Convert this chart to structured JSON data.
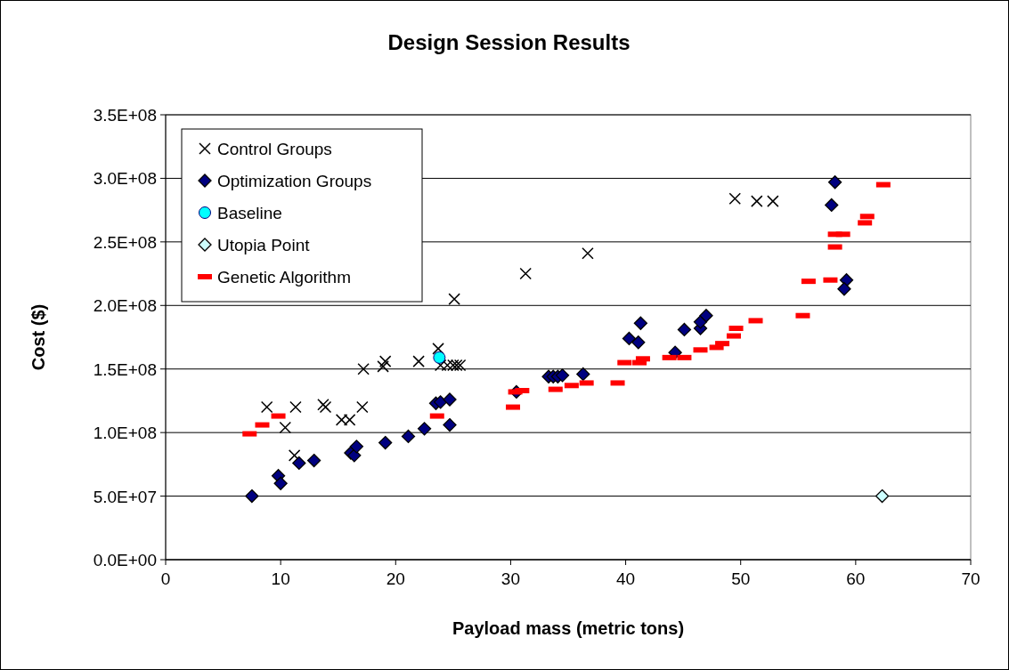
{
  "chart_data": {
    "type": "scatter",
    "title": "Design Session Results",
    "xlabel": "Payload mass (metric tons)",
    "ylabel": "Cost ($)",
    "xlim": [
      0,
      70
    ],
    "xticks": [
      0,
      10,
      20,
      30,
      40,
      50,
      60,
      70
    ],
    "ylim": [
      0,
      350000000
    ],
    "yticks": [
      {
        "value": 0,
        "label": "0.0E+00"
      },
      {
        "value": 50000000,
        "label": "5.0E+07"
      },
      {
        "value": 100000000,
        "label": "1.0E+08"
      },
      {
        "value": 150000000,
        "label": "1.5E+08"
      },
      {
        "value": 200000000,
        "label": "2.0E+08"
      },
      {
        "value": 250000000,
        "label": "2.5E+08"
      },
      {
        "value": 300000000,
        "label": "3.0E+08"
      },
      {
        "value": 350000000,
        "label": "3.5E+08"
      }
    ],
    "grid": "y",
    "legend": "top left",
    "series": [
      {
        "name": "Control Groups",
        "color": "#000000",
        "marker": "cross",
        "x": [
          8.8,
          11.3,
          10.4,
          11.2,
          13.7,
          13.9,
          15.3,
          16.0,
          17.1,
          17.2,
          18.9,
          19.1,
          22.0,
          23.7,
          23.9,
          24.5,
          25.0,
          25.3,
          25.6,
          25.1,
          31.3,
          36.7,
          49.5,
          51.4,
          52.8
        ],
        "values": [
          120000000,
          120000000,
          104000000,
          82000000,
          122000000,
          120000000,
          110000000,
          110000000,
          120000000,
          150000000,
          152000000,
          156000000,
          156000000,
          166000000,
          153000000,
          153000000,
          153000000,
          153000000,
          153000000,
          205000000,
          225000000,
          241000000,
          284000000,
          282000000,
          282000000
        ]
      },
      {
        "name": "Optimization Groups",
        "color": "#000080",
        "marker": "diamond",
        "x": [
          7.5,
          9.8,
          10.0,
          11.6,
          12.9,
          16.1,
          16.4,
          16.6,
          19.1,
          21.1,
          22.5,
          23.5,
          23.9,
          24.7,
          24.7,
          30.5,
          33.3,
          33.7,
          34.1,
          34.5,
          36.3,
          40.3,
          41.3,
          41.1,
          44.3,
          45.1,
          46.5,
          46.5,
          47.0,
          58.2,
          57.9,
          59.2,
          59.0
        ],
        "values": [
          50000000,
          66000000,
          60000000,
          76000000,
          78000000,
          84000000,
          82000000,
          89000000,
          92000000,
          97000000,
          103000000,
          123000000,
          124000000,
          126000000,
          106000000,
          132000000,
          144000000,
          144000000,
          144000000,
          145000000,
          146000000,
          174000000,
          186000000,
          171000000,
          163000000,
          181000000,
          182000000,
          187000000,
          192000000,
          297000000,
          279000000,
          220000000,
          213000000
        ]
      },
      {
        "name": "Baseline",
        "color": "#00ffff",
        "marker": "circle",
        "x": [
          23.8
        ],
        "values": [
          159000000
        ]
      },
      {
        "name": "Utopia Point",
        "color": "#ccffff",
        "marker": "diamond",
        "x": [
          62.3
        ],
        "values": [
          50000000
        ]
      },
      {
        "name": "Genetic Algorithm",
        "color": "#ff0000",
        "marker": "square",
        "x": [
          7.3,
          8.4,
          9.8,
          23.6,
          30.2,
          30.4,
          31.0,
          33.9,
          35.3,
          36.6,
          39.3,
          39.9,
          41.2,
          41.5,
          43.8,
          45.1,
          46.5,
          47.9,
          48.4,
          49.4,
          49.6,
          51.3,
          55.4,
          55.9,
          57.8,
          58.2,
          58.2,
          58.9,
          60.8,
          61.0,
          62.4
        ],
        "values": [
          99000000,
          106000000,
          113000000,
          113000000,
          120000000,
          132000000,
          133000000,
          134000000,
          137000000,
          139000000,
          139000000,
          155000000,
          155000000,
          158000000,
          159000000,
          159000000,
          165000000,
          167000000,
          170000000,
          176000000,
          182000000,
          188000000,
          192000000,
          219000000,
          220000000,
          246000000,
          256000000,
          256000000,
          265000000,
          270000000,
          295000000
        ]
      }
    ]
  }
}
